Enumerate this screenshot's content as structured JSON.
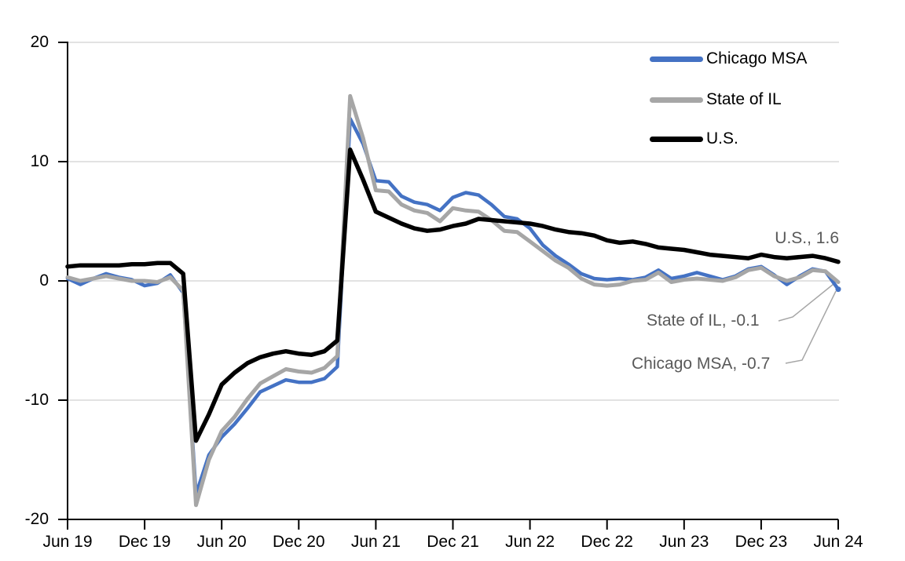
{
  "figure": {
    "background": "#FFFFFF",
    "plot_border": "none"
  },
  "chart_data": {
    "type": "line",
    "title": "",
    "xlabel": "",
    "ylabel": "",
    "x_axis": {
      "unit": "month",
      "start": "Jun 2019",
      "end": "Jun 2024",
      "tick_labels": [
        "Jun 19",
        "Dec 19",
        "Jun 20",
        "Dec 20",
        "Jun 21",
        "Dec 21",
        "Jun 22",
        "Dec 22",
        "Jun 23",
        "Dec 23",
        "Jun 24"
      ]
    },
    "y_axis": {
      "ticks": [
        20,
        10,
        0,
        -10,
        -20
      ],
      "ylim": [
        -20,
        20
      ],
      "gridlines": "horizontal",
      "gridline_color": "#D9D9D9",
      "axis_color": "#000000"
    },
    "legend": {
      "position": "top-right",
      "entries": [
        "Chicago MSA",
        "State of IL",
        "U.S."
      ]
    },
    "series": [
      {
        "name": "Chicago MSA",
        "color": "#4472C4",
        "last_value": -0.7,
        "values": [
          0.2,
          -0.3,
          0.2,
          0.6,
          0.3,
          0.1,
          -0.4,
          -0.2,
          0.5,
          -1.0,
          -17.9,
          -14.6,
          -13.1,
          -12.0,
          -10.7,
          -9.3,
          -8.8,
          -8.3,
          -8.5,
          -8.5,
          -8.2,
          -7.2,
          13.6,
          11.5,
          8.4,
          8.3,
          7.1,
          6.6,
          6.4,
          5.9,
          7.0,
          7.4,
          7.2,
          6.4,
          5.4,
          5.2,
          4.4,
          3.0,
          2.1,
          1.4,
          0.6,
          0.2,
          0.1,
          0.2,
          0.1,
          0.3,
          0.9,
          0.2,
          0.4,
          0.7,
          0.4,
          0.1,
          0.4,
          1.0,
          1.2,
          0.5,
          -0.3,
          0.4,
          1.0,
          0.8,
          -0.7
        ]
      },
      {
        "name": "State of IL",
        "color": "#A6A6A6",
        "last_value": -0.1,
        "values": [
          0.3,
          0.0,
          0.2,
          0.4,
          0.2,
          0.0,
          0.0,
          -0.1,
          0.3,
          -0.8,
          -18.8,
          -15.0,
          -12.6,
          -11.4,
          -9.9,
          -8.6,
          -8.0,
          -7.4,
          -7.6,
          -7.7,
          -7.3,
          -6.3,
          15.5,
          12.0,
          7.6,
          7.5,
          6.4,
          5.9,
          5.7,
          5.0,
          6.1,
          5.9,
          5.8,
          5.1,
          4.2,
          4.1,
          3.3,
          2.5,
          1.7,
          1.1,
          0.2,
          -0.3,
          -0.4,
          -0.3,
          0.0,
          0.1,
          0.7,
          -0.1,
          0.1,
          0.2,
          0.1,
          0.0,
          0.3,
          0.9,
          1.1,
          0.4,
          0.0,
          0.3,
          0.9,
          0.8,
          -0.1
        ]
      },
      {
        "name": "U.S.",
        "color": "#000000",
        "last_value": 1.6,
        "values": [
          1.2,
          1.3,
          1.3,
          1.3,
          1.3,
          1.4,
          1.4,
          1.5,
          1.5,
          0.6,
          -13.4,
          -11.2,
          -8.7,
          -7.7,
          -6.9,
          -6.4,
          -6.1,
          -5.9,
          -6.1,
          -6.2,
          -5.9,
          -5.0,
          11.0,
          8.5,
          5.8,
          5.3,
          4.8,
          4.4,
          4.2,
          4.3,
          4.6,
          4.8,
          5.2,
          5.1,
          5.0,
          4.9,
          4.8,
          4.6,
          4.3,
          4.1,
          4.0,
          3.8,
          3.4,
          3.2,
          3.3,
          3.1,
          2.8,
          2.7,
          2.6,
          2.4,
          2.2,
          2.1,
          2.0,
          1.9,
          2.2,
          2.0,
          1.9,
          2.0,
          2.1,
          1.9,
          1.6
        ]
      }
    ],
    "annotations": [
      {
        "text": "U.S., 1.6"
      },
      {
        "text": "State of IL, -0.1"
      },
      {
        "text": "Chicago MSA, -0.7"
      }
    ],
    "annotation_color": "#595959",
    "leader_line_color": "#A6A6A6"
  }
}
